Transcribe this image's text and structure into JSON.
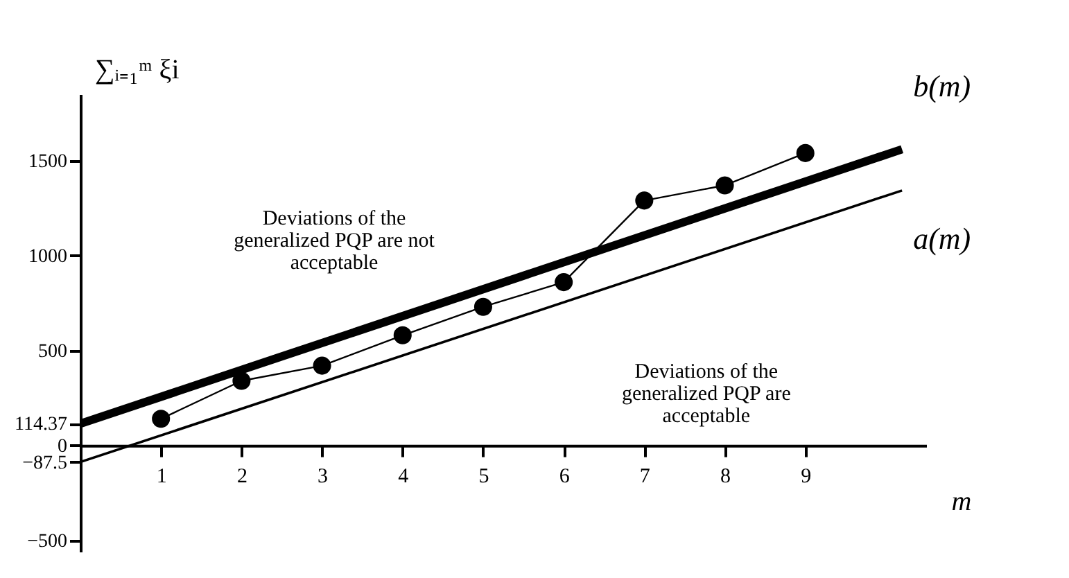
{
  "chart_data": {
    "type": "line",
    "xlabel": "m",
    "ylabel": "∑ᵢ₌₁ᵐ ξi",
    "xlim": [
      0,
      10.5
    ],
    "ylim": [
      -560,
      1850
    ],
    "xticks": [
      1,
      2,
      3,
      4,
      5,
      6,
      7,
      8,
      9
    ],
    "yticks": [
      -500,
      -87.5,
      0,
      114.37,
      500,
      1000,
      1500
    ],
    "grid": false,
    "legend": false,
    "series": [
      {
        "name": "b(m)",
        "color": "#000000",
        "marker": "none",
        "x": [
          0,
          10.2
        ],
        "values": [
          114.37,
          1560
        ]
      },
      {
        "name": "a(m)",
        "color": "#000000",
        "marker": "none",
        "x": [
          0,
          10.2
        ],
        "values": [
          -87.5,
          1343
        ]
      },
      {
        "color": "#000000",
        "marker": "circle",
        "x": [
          1,
          2,
          3,
          4,
          5,
          6,
          7,
          8,
          9
        ],
        "values": [
          140,
          340,
          420,
          580,
          730,
          860,
          1290,
          1370,
          1540
        ]
      }
    ],
    "annotations": [
      "Deviations of the\ngeneralized PQP are not\nacceptable",
      "Deviations of the\ngeneralized PQP are\nacceptable"
    ]
  }
}
